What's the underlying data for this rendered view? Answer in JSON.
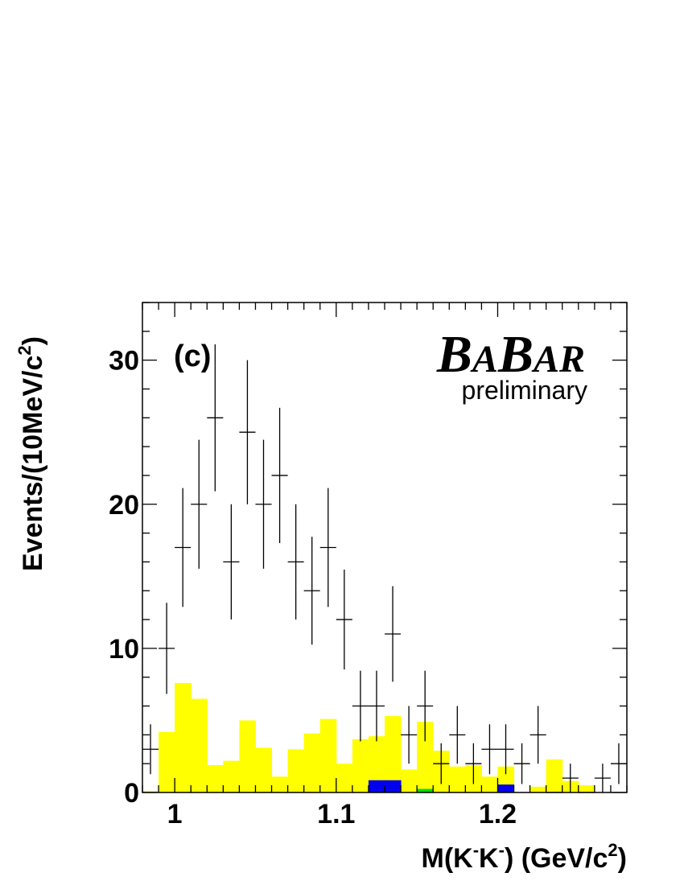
{
  "chart_data": {
    "type": "histogram",
    "panel_label": "(c)",
    "experiment_logo": "BABAR",
    "status_text": "preliminary",
    "xlabel": {
      "prefix": "M(K",
      "sup1": "-",
      "mid": "K",
      "sup2": "-",
      "suffix": ") (GeV/c",
      "sup3": "2",
      "end": ")"
    },
    "ylabel": {
      "prefix": "Events/(10MeV/c",
      "sup": "2",
      "end": ")"
    },
    "xlim": [
      0.98,
      1.28
    ],
    "ylim": [
      0,
      34
    ],
    "x_ticks": [
      {
        "value": 1.0,
        "label": "1"
      },
      {
        "value": 1.1,
        "label": "1.1"
      },
      {
        "value": 1.2,
        "label": "1.2"
      }
    ],
    "y_ticks": [
      {
        "value": 0,
        "label": "0"
      },
      {
        "value": 10,
        "label": "10"
      },
      {
        "value": 20,
        "label": "20"
      },
      {
        "value": 30,
        "label": "30"
      }
    ],
    "bin_width": 0.01,
    "data_points": {
      "x": [
        0.985,
        0.995,
        1.005,
        1.015,
        1.025,
        1.035,
        1.045,
        1.055,
        1.065,
        1.075,
        1.085,
        1.095,
        1.105,
        1.115,
        1.125,
        1.135,
        1.145,
        1.155,
        1.165,
        1.175,
        1.185,
        1.195,
        1.205,
        1.215,
        1.225,
        1.235,
        1.245,
        1.255,
        1.265,
        1.275
      ],
      "y": [
        3,
        10,
        17,
        20,
        26,
        16,
        25,
        20,
        22,
        16,
        14,
        17,
        12,
        6,
        6,
        11,
        4,
        6,
        2,
        4,
        2,
        3,
        3,
        2,
        4,
        0,
        1,
        0,
        1,
        2
      ]
    },
    "series": [
      {
        "name": "",
        "color": "#ffff00",
        "bins_low_edge": [
          0.98,
          0.99,
          1.0,
          1.01,
          1.02,
          1.03,
          1.04,
          1.05,
          1.06,
          1.07,
          1.08,
          1.09,
          1.1,
          1.11,
          1.12,
          1.13,
          1.14,
          1.15,
          1.16,
          1.17,
          1.18,
          1.19,
          1.2,
          1.21,
          1.22,
          1.23,
          1.24,
          1.25,
          1.26,
          1.27
        ],
        "values": [
          0.1,
          4.2,
          7.6,
          6.5,
          1.9,
          2.2,
          5.0,
          3.1,
          1.1,
          3.0,
          4.1,
          5.1,
          2.0,
          3.7,
          3.9,
          5.3,
          1.6,
          4.9,
          2.9,
          1.8,
          1.9,
          1.1,
          1.8,
          0.0,
          0.4,
          2.3,
          0.8,
          0.5,
          0.0,
          0.0
        ]
      },
      {
        "name": "",
        "color": "#0000ee",
        "bins_low_edge": [
          1.12,
          1.13,
          1.2
        ],
        "values": [
          0.85,
          0.85,
          0.55
        ]
      },
      {
        "name": "",
        "color": "#00dd00",
        "bins_low_edge": [
          1.15
        ],
        "values": [
          0.25
        ]
      }
    ]
  }
}
